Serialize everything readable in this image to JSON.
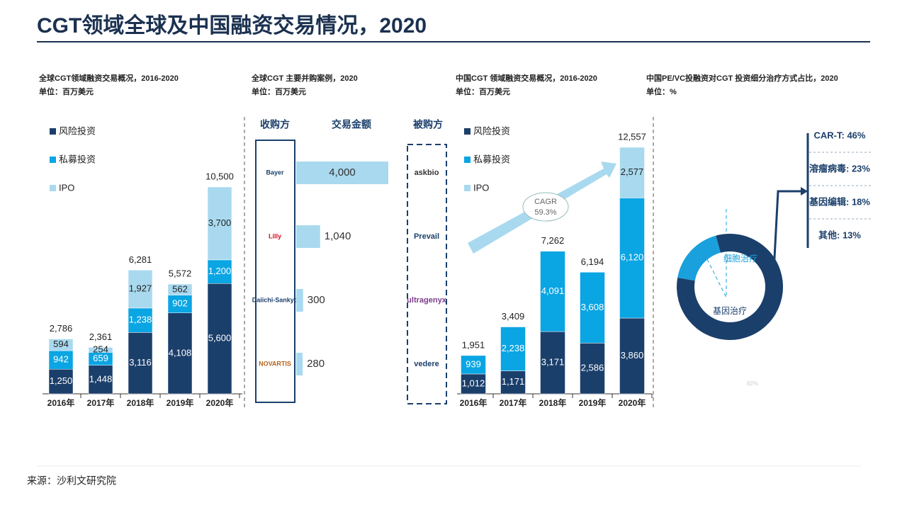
{
  "title": "CGT领域全球及中国融资交易情况，2020",
  "source": "来源：沙利文研究院",
  "chart_data": [
    {
      "type": "stacked-bar",
      "subtitle": "全球CGT领域融资交易概况，2016-2020",
      "unit": "单位：百万美元",
      "categories": [
        "2016年",
        "2017年",
        "2018年",
        "2019年",
        "2020年"
      ],
      "series": [
        {
          "name": "风险投资",
          "color": "#1b3f6b",
          "values": [
            1250,
            1448,
            3116,
            4108,
            5600
          ],
          "value_labels": [
            "1,250",
            "1,448",
            "3,116",
            "4,108",
            "5,600"
          ]
        },
        {
          "name": "私募投资",
          "color": "#0aa5e3",
          "values": [
            942,
            659,
            1238,
            902,
            1200
          ],
          "value_labels": [
            "942",
            "659",
            "1,238",
            "902",
            "1,200"
          ]
        },
        {
          "name": "IPO",
          "color": "#a9d9ef",
          "values": [
            594,
            254,
            1927,
            562,
            3700
          ],
          "value_labels": [
            "594",
            "254",
            "1,927",
            "562",
            "3,700"
          ]
        }
      ],
      "totals": [
        2786,
        2361,
        6281,
        5572,
        10500
      ],
      "total_labels": [
        "2,786",
        "2,361",
        "6,281",
        "5,572",
        "10,500"
      ]
    },
    {
      "type": "hbar",
      "subtitle": "全球CGT 主要并购案例，2020",
      "unit": "单位：百万美元",
      "headers": [
        "收购方",
        "交易金额",
        "被购方"
      ],
      "categories": [
        "Bayer",
        "Lilly",
        "Daiichi-Sankyo",
        "NOVARTIS"
      ],
      "targets": [
        "askbio",
        "Prevail",
        "ultragenyx",
        "vedere"
      ],
      "values": [
        4000,
        1040,
        300,
        280
      ],
      "value_labels": [
        "4,000",
        "1,040",
        "300",
        "280"
      ],
      "color": "#a9d9ef"
    },
    {
      "type": "stacked-bar",
      "subtitle": "中国CGT 领域融资交易概况，2016-2020",
      "unit": "单位：百万美元",
      "categories": [
        "2016年",
        "2017年",
        "2018年",
        "2019年",
        "2020年"
      ],
      "series": [
        {
          "name": "风险投资",
          "color": "#1b3f6b",
          "values": [
            1012,
            1171,
            3171,
            2586,
            3860
          ],
          "value_labels": [
            "1,012",
            "1,171",
            "3,171",
            "2,586",
            "3,860"
          ]
        },
        {
          "name": "私募投资",
          "color": "#0aa5e3",
          "values": [
            939,
            2238,
            4091,
            3608,
            6120
          ],
          "value_labels": [
            "939",
            "2,238",
            "4,091",
            "3,608",
            "6,120"
          ]
        },
        {
          "name": "IPO",
          "color": "#a9d9ef",
          "values": [
            null,
            null,
            null,
            null,
            2577
          ],
          "value_labels": [
            null,
            null,
            null,
            null,
            "2,577"
          ]
        }
      ],
      "totals": [
        1951,
        3409,
        7262,
        6194,
        12557
      ],
      "total_labels": [
        "1,951",
        "3,409",
        "7,262",
        "6,194",
        "12,557"
      ],
      "annotation": {
        "label": "CAGR",
        "value": "59.3%"
      }
    },
    {
      "type": "donut",
      "subtitle": "中国PE/VC投融资对CGT 投资细分治疗方式占比，2020",
      "unit": "单位：%",
      "categories": [
        "细胞治疗",
        "基因治疗"
      ],
      "values": [
        18,
        82
      ],
      "value_labels": [
        null,
        "82%"
      ],
      "colors": [
        "#1aa0dc",
        "#1b3f6b"
      ],
      "breakdown": {
        "values": [
          46,
          23,
          18,
          13
        ],
        "value_labels": [
          "CAR-T: 46%",
          "溶瘤病毒: 23%",
          "基因编辑: 18%",
          "其他: 13%"
        ]
      }
    }
  ]
}
